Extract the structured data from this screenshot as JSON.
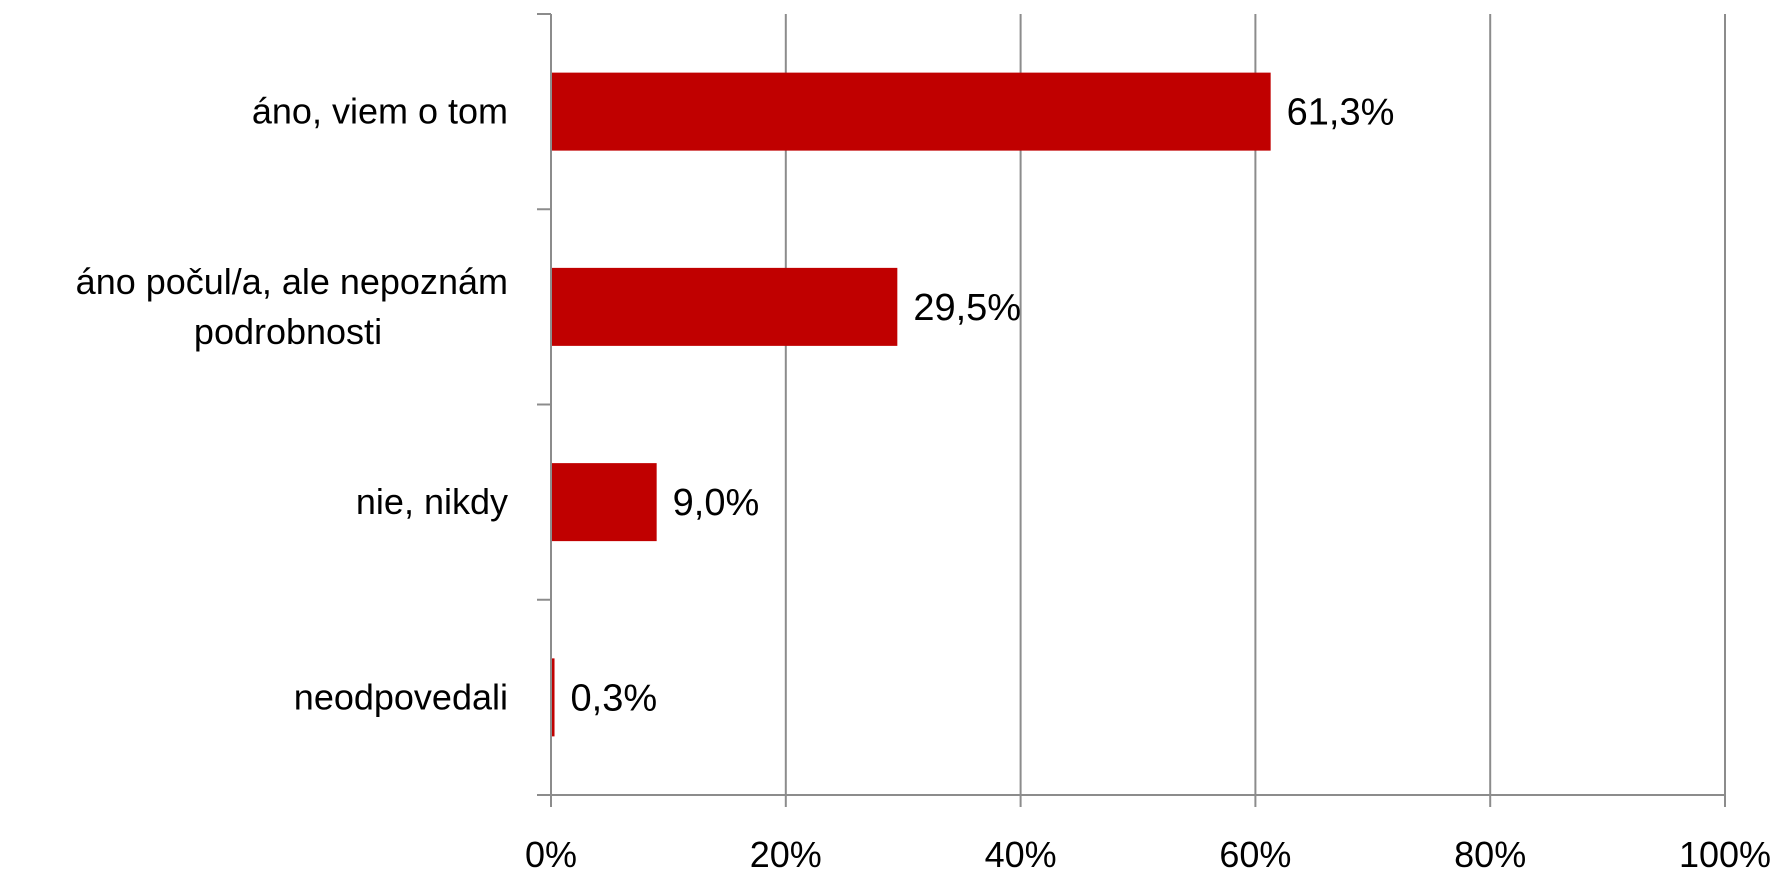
{
  "chart_data": {
    "type": "bar",
    "orientation": "horizontal",
    "categories": [
      [
        "áno, viem o tom"
      ],
      [
        "áno počul/a, ale nepoznám",
        "podrobnosti"
      ],
      [
        "nie, nikdy"
      ],
      [
        "neodpovedali"
      ]
    ],
    "values": [
      61.3,
      29.5,
      9.0,
      0.3
    ],
    "data_labels": [
      "61,3%",
      "29,5%",
      "9,0%",
      "0,3%"
    ],
    "x_ticks": [
      0,
      20,
      40,
      60,
      80,
      100
    ],
    "x_tick_labels": [
      "0%",
      "20%",
      "40%",
      "60%",
      "80%",
      "100%"
    ],
    "xlim": [
      0,
      100
    ],
    "grid": true,
    "legend": "none",
    "colors": {
      "bar": "#c00000",
      "grid": "#8c8c8c",
      "axis": "#8c8c8c",
      "text": "#000000"
    }
  }
}
